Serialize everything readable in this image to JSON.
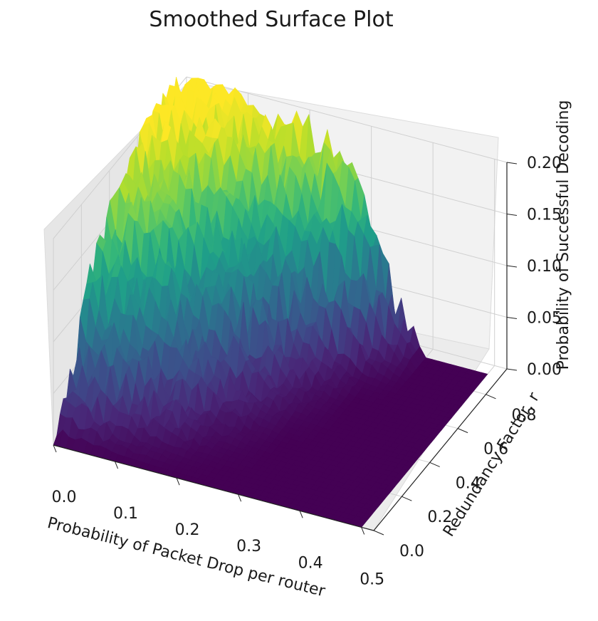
{
  "chart_data": {
    "type": "surface3d",
    "title": "Smoothed Surface Plot",
    "xlabel": "Probability of Packet Drop per router",
    "ylabel": "Redundancy Factor, r",
    "zlabel": "Probability of Successful Decoding",
    "x_ticks": [
      "0.0",
      "0.1",
      "0.2",
      "0.3",
      "0.4",
      "0.5"
    ],
    "y_ticks": [
      "0.0",
      "0.2",
      "0.4",
      "0.6",
      "0.8"
    ],
    "z_ticks": [
      "0.00",
      "0.05",
      "0.10",
      "0.15",
      "0.20"
    ],
    "xlim": [
      0,
      0.52
    ],
    "ylim": [
      0,
      0.95
    ],
    "zlim": [
      0,
      0.2
    ],
    "colormap": "viridis",
    "x_grid": [
      0.0,
      0.05,
      0.1,
      0.15,
      0.2,
      0.25,
      0.3,
      0.35,
      0.4,
      0.45,
      0.5
    ],
    "y_grid": [
      0.0,
      0.1,
      0.2,
      0.3,
      0.4,
      0.5,
      0.6,
      0.7,
      0.8,
      0.9
    ],
    "z_rows": [
      [
        0.0,
        0.0,
        0.0,
        0.0,
        0.0,
        0.0,
        0.0,
        0.0,
        0.0,
        0.0,
        0.0
      ],
      [
        0.04,
        0.03,
        0.012,
        0.006,
        0.002,
        0.0,
        0.0,
        0.0,
        0.0,
        0.0,
        0.0
      ],
      [
        0.09,
        0.07,
        0.04,
        0.02,
        0.006,
        0.002,
        0.0,
        0.0,
        0.0,
        0.0,
        0.0
      ],
      [
        0.13,
        0.1,
        0.07,
        0.04,
        0.015,
        0.005,
        0.0,
        0.0,
        0.0,
        0.0,
        0.0
      ],
      [
        0.16,
        0.13,
        0.1,
        0.06,
        0.03,
        0.01,
        0.002,
        0.0,
        0.0,
        0.0,
        0.0
      ],
      [
        0.18,
        0.16,
        0.12,
        0.08,
        0.05,
        0.02,
        0.005,
        0.0,
        0.0,
        0.0,
        0.0
      ],
      [
        0.19,
        0.17,
        0.14,
        0.11,
        0.07,
        0.035,
        0.01,
        0.0,
        0.0,
        0.0,
        0.0
      ],
      [
        0.2,
        0.19,
        0.17,
        0.14,
        0.1,
        0.06,
        0.02,
        0.003,
        0.0,
        0.0,
        0.0
      ],
      [
        0.21,
        0.2,
        0.19,
        0.17,
        0.15,
        0.12,
        0.09,
        0.02,
        0.0,
        0.0,
        0.0
      ],
      [
        0.21,
        0.21,
        0.2,
        0.2,
        0.19,
        0.18,
        0.15,
        0.05,
        0.0,
        0.0,
        0.0
      ]
    ]
  }
}
